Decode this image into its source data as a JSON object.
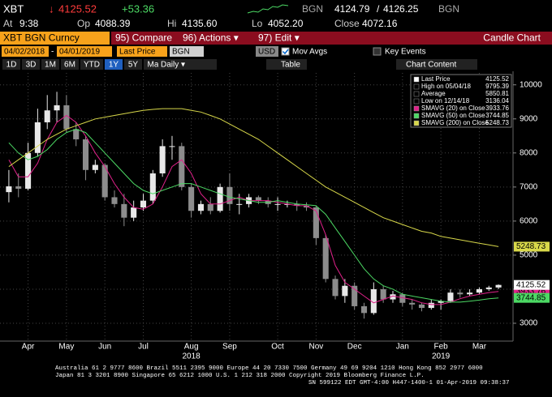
{
  "header": {
    "ticker": "XBT",
    "last": "4125.52",
    "change": "+53.36",
    "source": "BGN",
    "bid": "4124.79",
    "ask": "4126.25",
    "at_label": "At",
    "at": "9:38",
    "open_label": "Op",
    "open": "4088.39",
    "high_label": "Hi",
    "high": "4135.60",
    "low_label": "Lo",
    "low": "4052.20",
    "close_label": "Close",
    "close": "4072.16"
  },
  "toolbar": {
    "security": "XBT BGN Curncy",
    "buttons": [
      "95) Compare",
      "96) Actions ▾",
      "97) Edit ▾"
    ],
    "title": "Candle Chart",
    "start": "04/02/2018",
    "end": "04/01/2019",
    "field": "Last Price",
    "source": "BGN",
    "currency": "USD",
    "mov_avgs": "Mov Avgs",
    "key_events": "Key Events",
    "periods": [
      "1D",
      "3D",
      "1M",
      "6M",
      "YTD",
      "1Y",
      "5Y",
      "Max"
    ],
    "selected_period": "1Y",
    "frequency": "Daily ▾",
    "table": "Table",
    "chart_content": "Chart Content"
  },
  "chart_data": {
    "type": "candlestick",
    "categories": [
      null,
      null,
      "Apr",
      null,
      null,
      null,
      "May",
      null,
      null,
      null,
      "Jun",
      null,
      null,
      null,
      "Jul",
      null,
      null,
      null,
      null,
      "Aug",
      null,
      null,
      null,
      "Sep",
      null,
      null,
      null,
      null,
      "Oct",
      null,
      null,
      null,
      "Nov",
      null,
      null,
      null,
      "Dec",
      null,
      null,
      null,
      null,
      "Jan",
      null,
      null,
      null,
      "Feb",
      null,
      null,
      null,
      "Mar",
      null,
      null
    ],
    "year_categories": [
      null,
      null,
      null,
      null,
      null,
      null,
      null,
      null,
      null,
      null,
      null,
      null,
      null,
      null,
      null,
      null,
      null,
      null,
      null,
      "2018",
      null,
      null,
      null,
      null,
      null,
      null,
      null,
      null,
      null,
      null,
      null,
      null,
      null,
      null,
      null,
      null,
      null,
      null,
      null,
      null,
      null,
      null,
      null,
      null,
      null,
      "2019",
      null,
      null,
      null,
      null,
      null,
      null
    ],
    "open": [
      6850,
      7020,
      6950,
      8000,
      8900,
      9250,
      9400,
      8700,
      8400,
      7500,
      7650,
      6700,
      6500,
      6100,
      6400,
      6600,
      7400,
      8200,
      8200,
      7000,
      6300,
      6500,
      6300,
      7000,
      6500,
      6500,
      6700,
      6600,
      6500,
      6500,
      6500,
      6450,
      6400,
      5500,
      4300,
      3800,
      4100,
      3500,
      3300,
      4000,
      3700,
      3850,
      3600,
      3550,
      3450,
      3600,
      3650,
      3900,
      3850,
      3900,
      4000,
      4050
    ],
    "high": [
      7500,
      7400,
      8300,
      9300,
      9700,
      9795.39,
      9700,
      8900,
      8500,
      7800,
      7700,
      6900,
      6800,
      6600,
      6800,
      7500,
      8400,
      8500,
      8300,
      7100,
      6600,
      6700,
      7100,
      7400,
      6800,
      6800,
      6750,
      6700,
      6700,
      6600,
      6600,
      6550,
      6450,
      5600,
      4400,
      4300,
      4200,
      3600,
      4200,
      4100,
      3950,
      3900,
      3700,
      3600,
      3700,
      3700,
      4000,
      4000,
      4000,
      4050,
      4100,
      4140
    ],
    "low": [
      6550,
      6700,
      6900,
      7900,
      8700,
      8900,
      8600,
      8200,
      7200,
      7400,
      6600,
      6400,
      5850,
      6000,
      6300,
      6500,
      7300,
      7800,
      6900,
      6100,
      6200,
      6200,
      6250,
      6300,
      6200,
      6400,
      6500,
      6400,
      6300,
      6400,
      6300,
      6300,
      5300,
      4200,
      3700,
      3600,
      3400,
      3136.04,
      3250,
      3600,
      3600,
      3500,
      3400,
      3350,
      3400,
      3400,
      3600,
      3750,
      3800,
      3850,
      3950,
      4000
    ],
    "close": [
      7020,
      6950,
      8000,
      8900,
      9250,
      9400,
      8700,
      8400,
      7500,
      7650,
      6700,
      6500,
      6100,
      6400,
      6600,
      7400,
      8200,
      8200,
      7000,
      6300,
      6500,
      6300,
      7000,
      6500,
      6500,
      6700,
      6600,
      6500,
      6500,
      6500,
      6450,
      6400,
      5500,
      4300,
      3800,
      4100,
      3500,
      3300,
      4000,
      3700,
      3850,
      3600,
      3550,
      3450,
      3600,
      3650,
      3900,
      3850,
      3900,
      4000,
      4050,
      4125.52
    ],
    "up_color": "#e8e8e8",
    "down_color": "#8c8c8c",
    "series": [
      {
        "name": "SMAVG (20) on Close",
        "color": "#e0218a",
        "values": [
          7800,
          7300,
          7300,
          7700,
          8400,
          8900,
          9100,
          8900,
          8500,
          8000,
          7600,
          7100,
          6700,
          6400,
          6350,
          6500,
          7000,
          7600,
          7800,
          7400,
          6800,
          6500,
          6500,
          6600,
          6700,
          6600,
          6600,
          6600,
          6550,
          6500,
          6450,
          6450,
          6300,
          5600,
          4700,
          4200,
          4000,
          3800,
          3600,
          3700,
          3800,
          3750,
          3700,
          3600,
          3550,
          3550,
          3620,
          3720,
          3800,
          3850,
          3900,
          3933.76
        ]
      },
      {
        "name": "SMAVG (50) on Close",
        "color": "#4cd964",
        "values": [
          8300,
          8000,
          7800,
          7900,
          8100,
          8400,
          8600,
          8700,
          8600,
          8300,
          8000,
          7700,
          7400,
          7100,
          6900,
          6800,
          6900,
          7000,
          7100,
          7100,
          7000,
          6900,
          6800,
          6700,
          6650,
          6600,
          6550,
          6550,
          6600,
          6550,
          6500,
          6480,
          6450,
          6200,
          5800,
          5400,
          5000,
          4600,
          4300,
          4100,
          4000,
          3850,
          3800,
          3750,
          3700,
          3650,
          3620,
          3620,
          3650,
          3680,
          3720,
          3744.85
        ]
      },
      {
        "name": "SMAVG (200) on Close",
        "color": "#d8d84a",
        "values": [
          7600,
          7800,
          8000,
          8200,
          8400,
          8550,
          8700,
          8800,
          8900,
          9000,
          9050,
          9100,
          9150,
          9200,
          9250,
          9280,
          9300,
          9300,
          9300,
          9250,
          9200,
          9100,
          9000,
          8850,
          8700,
          8550,
          8400,
          8200,
          8000,
          7800,
          7600,
          7400,
          7200,
          7000,
          6850,
          6700,
          6550,
          6400,
          6250,
          6100,
          6000,
          5900,
          5800,
          5700,
          5650,
          5550,
          5500,
          5450,
          5400,
          5350,
          5300,
          5248.73
        ]
      }
    ],
    "last_label": "Last Price",
    "stats": [
      {
        "label": "High on 05/04/18",
        "value": 9795.39
      },
      {
        "label": "Average",
        "value": 5850.81
      },
      {
        "label": "Low on 12/14/18",
        "value": 3136.04
      }
    ],
    "ylim": [
      2500,
      10350
    ],
    "yticks": [
      3000,
      4000,
      5000,
      6000,
      7000,
      8000,
      9000,
      10000
    ],
    "grid": true,
    "legend": "top-right"
  },
  "footer": [
    "Australia 61 2 9777 8600 Brazil 5511 2395 9000 Europe 44 20 7330 7500 Germany 49 69 9204 1210 Hong Kong 852 2977 6000",
    "Japan 81 3 3201 8900        Singapore 65 6212 1000        U.S. 1 212 318 2000        Copyright 2019 Bloomberg Finance L.P.",
    "SN 599122 EDT  GMT-4:00 H447-1400-1 01-Apr-2019 09:38:37"
  ]
}
